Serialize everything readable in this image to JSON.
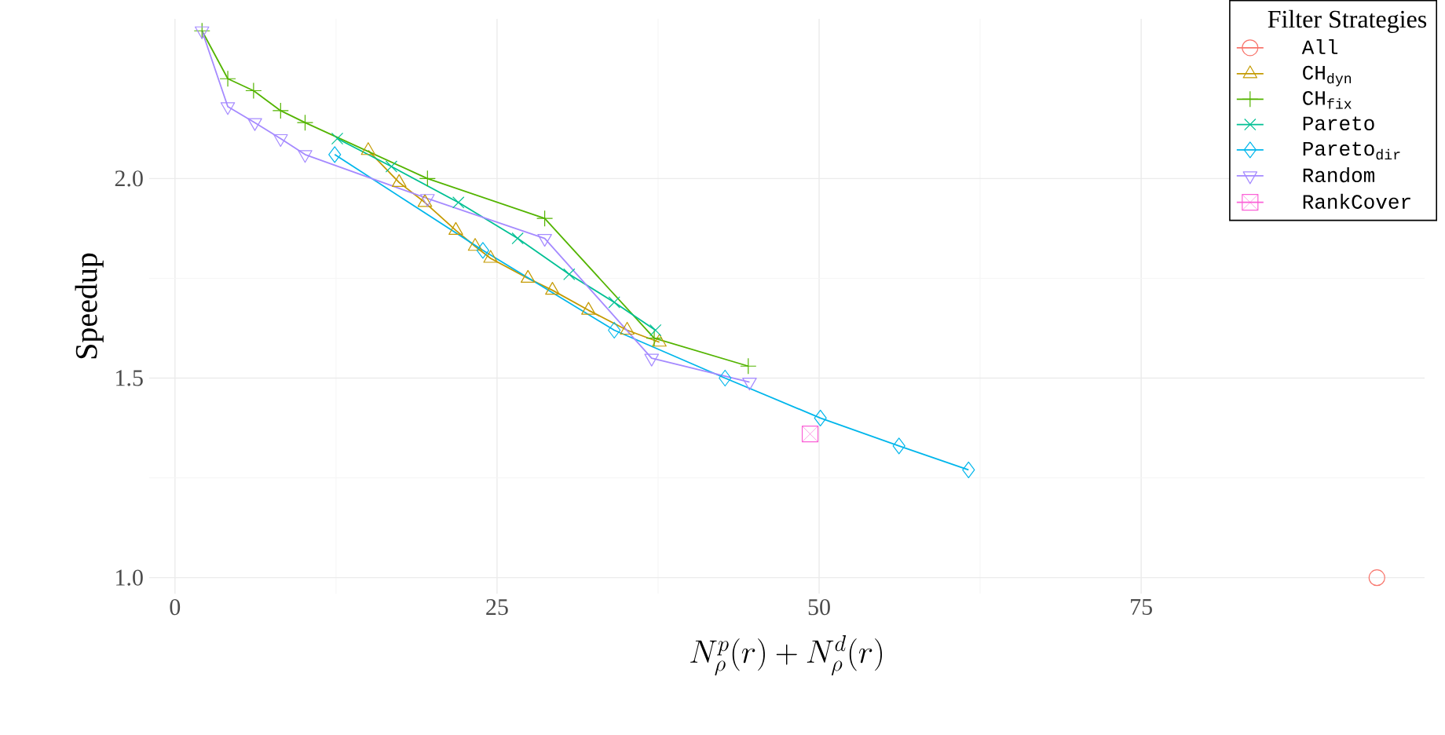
{
  "chart_data": {
    "type": "line",
    "xlabel": "N_{\\rho}^{p}(r) + N_{\\rho}^{d}(r)",
    "ylabel": "Speedup",
    "legend_title": "Filter Strategies",
    "legend": "top right",
    "grid": true,
    "xlim": [
      -2,
      97
    ],
    "ylim": [
      0.96,
      2.4
    ],
    "xticks": [
      0,
      25,
      50,
      75
    ],
    "yticks": [
      {
        "value": 1,
        "label": "1.0"
      },
      {
        "value": 1.5,
        "label": "1.5"
      },
      {
        "value": 2,
        "label": "2.0"
      }
    ],
    "series": [
      {
        "name": "All",
        "color": "#f8766d",
        "marker": "circle",
        "x": [
          93.3
        ],
        "values": [
          1.0
        ]
      },
      {
        "name": "CH$_{dyn}$",
        "color": "#c49a00",
        "marker": "triangle",
        "x": [
          15.0,
          17.4,
          19.4,
          21.8,
          23.3,
          24.5,
          27.4,
          29.3,
          32.1,
          35.1,
          37.6
        ],
        "values": [
          2.07,
          1.99,
          1.94,
          1.87,
          1.83,
          1.8,
          1.75,
          1.72,
          1.67,
          1.62,
          1.59
        ]
      },
      {
        "name": "CH$_{fix}$",
        "color": "#53b400",
        "marker": "plus",
        "x": [
          2.1,
          4.1,
          6.1,
          8.2,
          10.1,
          19.6,
          28.7,
          37.2,
          44.5
        ],
        "values": [
          2.37,
          2.25,
          2.22,
          2.17,
          2.14,
          2.0,
          1.9,
          1.6,
          1.53
        ]
      },
      {
        "name": "Pareto",
        "color": "#00c094",
        "marker": "cross",
        "x": [
          12.6,
          16.8,
          22.0,
          26.6,
          30.6,
          34.1,
          37.3
        ],
        "values": [
          2.1,
          2.03,
          1.94,
          1.85,
          1.76,
          1.69,
          1.62
        ]
      },
      {
        "name": "Pareto$_{dir}$",
        "color": "#00b6eb",
        "marker": "diamond",
        "x": [
          12.4,
          23.9,
          34.1,
          42.7,
          50.1,
          56.2,
          61.6
        ],
        "values": [
          2.06,
          1.82,
          1.62,
          1.5,
          1.4,
          1.33,
          1.27
        ]
      },
      {
        "name": "Random",
        "color": "#a58aff",
        "marker": "triangle_down",
        "x": [
          2.1,
          4.1,
          6.2,
          8.2,
          10.1,
          19.6,
          28.7,
          37.0,
          44.6
        ],
        "values": [
          2.37,
          2.18,
          2.14,
          2.1,
          2.06,
          1.95,
          1.85,
          1.55,
          1.49
        ]
      },
      {
        "name": "RankCover",
        "color": "#fb61d7",
        "marker": "square",
        "x": [
          49.3
        ],
        "values": [
          1.36
        ]
      }
    ]
  }
}
